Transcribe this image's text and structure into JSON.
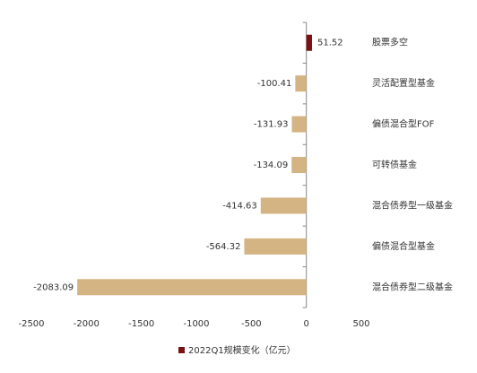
{
  "chart_data": {
    "type": "hbar",
    "categories": [
      "股票多空",
      "灵活配置型基金",
      "偏债混合型FOF",
      "可转债基金",
      "混合债券型一级基金",
      "偏债混合型基金",
      "混合债券型二级基金"
    ],
    "series": [
      {
        "name": "2022Q1规模变化（亿元）",
        "color": "#7b1113",
        "values": [
          51.52,
          -100.41,
          -131.93,
          -134.09,
          -414.63,
          -564.32,
          -2083.09
        ],
        "colors": [
          "#7b1113",
          "#d4b483",
          "#d4b483",
          "#d4b483",
          "#d4b483",
          "#d4b483",
          "#d4b483"
        ]
      }
    ],
    "xlim": [
      -2500,
      500
    ],
    "xticks": [
      -2500,
      -2000,
      -1500,
      -1000,
      -500,
      0,
      500
    ],
    "legend": "bottom"
  }
}
